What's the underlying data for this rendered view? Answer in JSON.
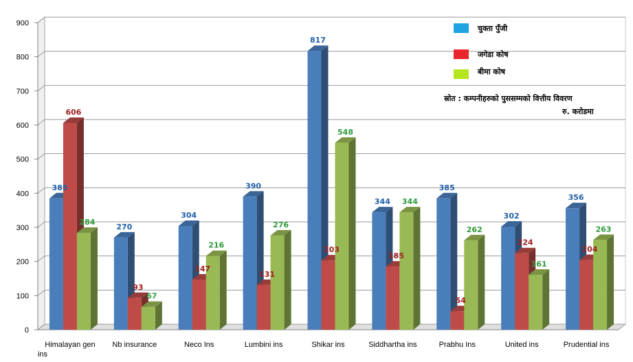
{
  "chart_data": {
    "type": "bar",
    "title": "",
    "xlabel": "",
    "ylabel": "",
    "ylim": [
      0,
      900
    ],
    "yticks": [
      0,
      100,
      200,
      300,
      400,
      500,
      600,
      700,
      800,
      900
    ],
    "grid": true,
    "legend_position": "top-right",
    "categories": [
      "Himalayan gen ins",
      "Nb insurance",
      "Neco Ins",
      "Lumbini ins",
      "Shikar ins",
      "Siddhartha ins",
      "Prabhu Ins",
      "United ins",
      "Prudential ins"
    ],
    "series": [
      {
        "name": "चुक्ता पुँजी",
        "color": "#4a7ebb",
        "label_color": "#1f5fa8",
        "values": [
          385,
          270,
          304,
          390,
          817,
          344,
          385,
          302,
          356
        ]
      },
      {
        "name": "जगेडा कोष",
        "color": "#be4b48",
        "label_color": "#a01e1e",
        "values": [
          606,
          93,
          147,
          131,
          203,
          185,
          54,
          224,
          204
        ]
      },
      {
        "name": "बीमा कोष",
        "color": "#98b954",
        "label_color": "#2e9a3a",
        "values": [
          284,
          67,
          216,
          276,
          548,
          344,
          262,
          161,
          263
        ]
      }
    ],
    "legend_swatches": [
      "#1ea3e0",
      "#e8262c",
      "#b5e61d"
    ],
    "annotations": [
      "स्रोत : कम्पनीहरुको पुससम्मको वित्तीय विवरण",
      "रु. करोडमा"
    ]
  }
}
